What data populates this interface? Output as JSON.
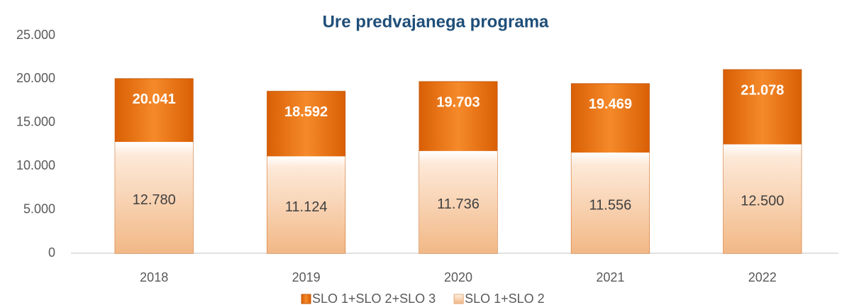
{
  "chart_data": {
    "type": "bar",
    "title": "Ure predvajanega programa",
    "categories": [
      "2018",
      "2019",
      "2020",
      "2021",
      "2022"
    ],
    "series": [
      {
        "name": "SLO 1+SLO 2+SLO 3",
        "color": "#f07a1a",
        "values": [
          20041,
          18592,
          19703,
          19469,
          21078
        ],
        "value_labels": [
          "20.041",
          "18.592",
          "19.703",
          "19.469",
          "21.078"
        ]
      },
      {
        "name": "SLO 1+SLO 2",
        "color": "#f6c9a2",
        "values": [
          12780,
          11124,
          11736,
          11556,
          12500
        ],
        "value_labels": [
          "12.780",
          "11.124",
          "11.736",
          "11.556",
          "12.500"
        ]
      }
    ],
    "ylim": [
      0,
      25000
    ],
    "yticks": [
      0,
      {
        "value": 5000,
        "label": "5.000"
      },
      {
        "value": 10000,
        "label": "10.000"
      },
      {
        "value": 15000,
        "label": "15.000"
      },
      {
        "value": 20000,
        "label": "20.000"
      },
      {
        "value": 25000,
        "label": "25.000"
      }
    ],
    "grid": false
  }
}
